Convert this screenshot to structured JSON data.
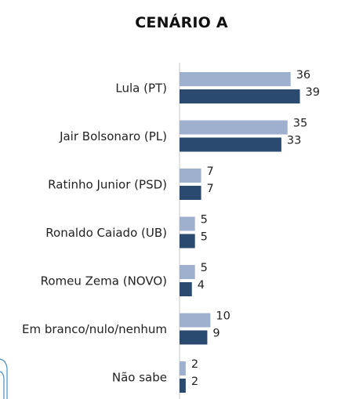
{
  "colors": {
    "series_1": "#9fb0cf",
    "series_2": "#2a4a70",
    "axis": "#c8c8c8",
    "decoration": "#4a8fc4"
  },
  "chart_data": {
    "type": "bar",
    "orientation": "horizontal",
    "title": "CENÁRIO A",
    "categories": [
      "Lula (PT)",
      "Jair Bolsonaro (PL)",
      "Ratinho Junior (PSD)",
      "Ronaldo Caiado (UB)",
      "Romeu Zema (NOVO)",
      "Em branco/nulo/nenhum",
      "Não sabe"
    ],
    "series": [
      {
        "values": [
          36,
          35,
          7,
          5,
          5,
          10,
          2
        ]
      },
      {
        "values": [
          39,
          33,
          7,
          5,
          4,
          9,
          2
        ]
      }
    ],
    "xlim": [
      0,
      40
    ],
    "grid": false,
    "data_labels": true
  }
}
